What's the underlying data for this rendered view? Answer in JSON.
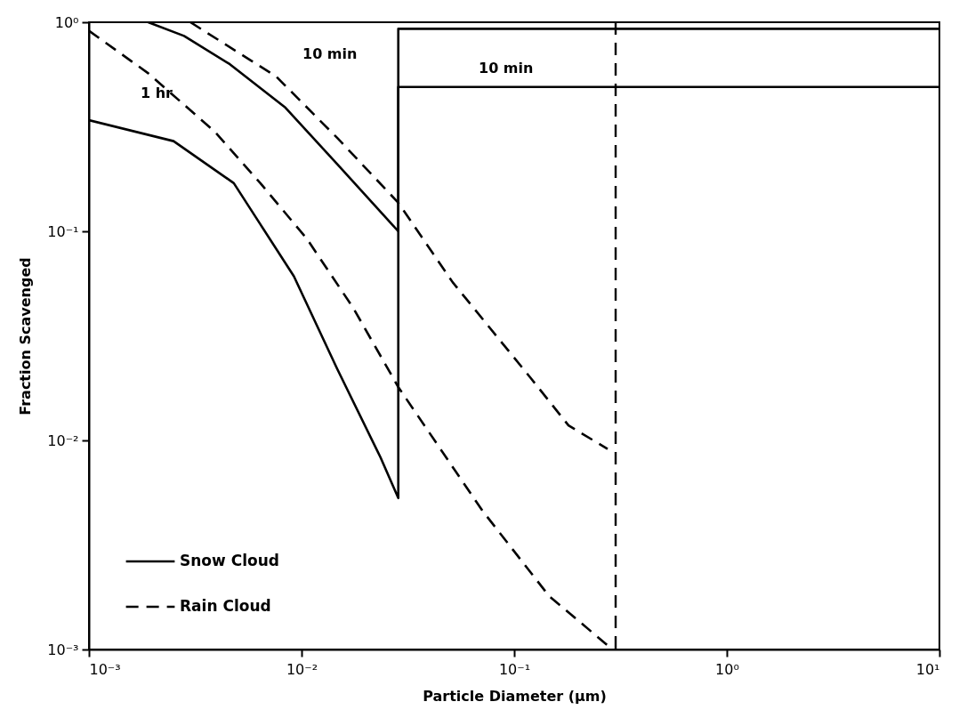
{
  "chart_data": {
    "type": "line",
    "xlabel": "Particle Diameter (μm)",
    "ylabel": "Fraction Scavenged",
    "log": "xy",
    "xlim": [
      0.001,
      10
    ],
    "ylim": [
      0.001,
      1
    ],
    "xticks": [
      {
        "value": 0.001,
        "label": "10⁻³"
      },
      {
        "value": 0.01,
        "label": "10⁻²"
      },
      {
        "value": 0.1,
        "label": "10⁻¹"
      },
      {
        "value": 1,
        "label": "10⁰"
      },
      {
        "value": 10,
        "label": "10¹"
      }
    ],
    "yticks": [
      {
        "value": 0.001,
        "label": "10⁻³"
      },
      {
        "value": 0.01,
        "label": "10⁻²"
      },
      {
        "value": 0.1,
        "label": "10⁻¹"
      },
      {
        "value": 1,
        "label": "10⁰"
      }
    ],
    "legend": "bottom left",
    "grid": false,
    "series": [
      {
        "name": "Snow Cloud",
        "color": "#000000",
        "line_style": "solid",
        "x": [
          0.0019,
          0.0028,
          0.0046,
          0.0084,
          0.0147,
          0.0285,
          0.0285,
          10
        ],
        "values": [
          1.0,
          0.86,
          0.63,
          0.39,
          0.21,
          0.1,
          0.49,
          0.49
        ]
      },
      {
        "color": "#000000",
        "line_style": "solid",
        "x": [
          0.001,
          0.0025,
          0.0048,
          0.0064,
          0.0092,
          0.0147,
          0.0235,
          0.0285,
          0.0285,
          10
        ],
        "values": [
          0.34,
          0.27,
          0.17,
          0.108,
          0.061,
          0.022,
          0.0083,
          0.0053,
          0.93,
          0.93
        ]
      },
      {
        "name": "Rain Cloud",
        "color": "#000000",
        "line_style": "dashed",
        "x": [
          0.003,
          0.0076,
          0.0147,
          0.0285,
          0.0514,
          0.119,
          0.18,
          0.275
        ],
        "values": [
          1.0,
          0.55,
          0.28,
          0.137,
          0.057,
          0.02,
          0.0118,
          0.0091
        ]
      },
      {
        "color": "#000000",
        "line_style": "dashed",
        "x": [
          0.001,
          0.0019,
          0.0039,
          0.0064,
          0.0106,
          0.0175,
          0.0285,
          0.0428,
          0.071,
          0.146,
          0.29
        ],
        "values": [
          0.91,
          0.57,
          0.3,
          0.17,
          0.092,
          0.043,
          0.018,
          0.0098,
          0.0046,
          0.0018,
          0.001
        ]
      }
    ],
    "ref_lines": [
      {
        "axis": "x",
        "value": 0.3,
        "color": "#000000",
        "line_style": "dashed"
      }
    ],
    "annotations": [
      "10 min",
      "1 hr",
      "10 min"
    ]
  }
}
